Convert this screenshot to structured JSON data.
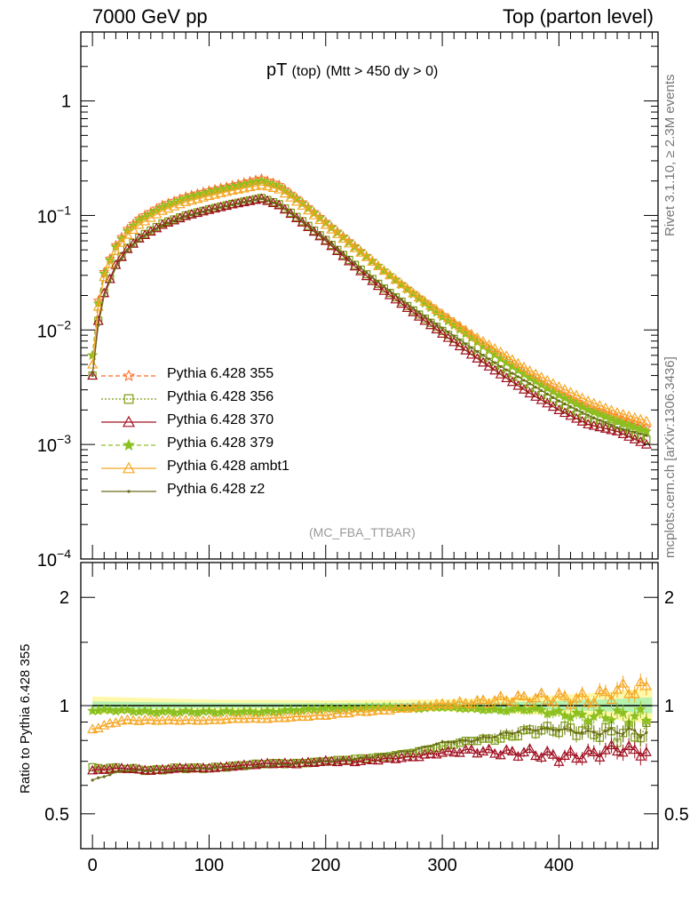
{
  "header": {
    "left": "7000 GeV pp",
    "right": "Top (parton level)"
  },
  "side_labels": {
    "rivet": "Rivet 3.1.10, ≥ 2.3M events",
    "mcplots": "mcplots.cern.ch [arXiv:1306.3436]"
  },
  "plot_title": {
    "main": "pT",
    "sub1": "(top)",
    "sub2": "(Mtt > 450 dy > 0)"
  },
  "watermark": "(MC_FBA_TTBAR)",
  "ratio_ylabel": "Ratio to Pythia 6.428 355",
  "legend": [
    {
      "label": "Pythia 6.428 355",
      "color": "#ff6a20",
      "marker": "star-open",
      "dash": "5,3"
    },
    {
      "label": "Pythia 6.428 356",
      "color": "#7a9a10",
      "marker": "square-open",
      "dash": "2,2"
    },
    {
      "label": "Pythia 6.428 370",
      "color": "#a01020",
      "marker": "triangle-open",
      "dash": ""
    },
    {
      "label": "Pythia 6.428 379",
      "color": "#8cc020",
      "marker": "star-filled",
      "dash": "5,3"
    },
    {
      "label": "Pythia 6.428 ambt1",
      "color": "#f5a623",
      "marker": "triangle-open",
      "dash": ""
    },
    {
      "label": "Pythia 6.428 z2",
      "color": "#6b6b1a",
      "marker": "dot",
      "dash": ""
    }
  ],
  "chart_data": [
    {
      "type": "line",
      "panel": "main",
      "yscale": "log",
      "xlim": [
        -10,
        485
      ],
      "ylim": [
        0.0001,
        4
      ],
      "ytick_labels": [
        "1",
        "10^-1",
        "10^-2",
        "10^-3",
        "10^-4"
      ],
      "x": [
        0,
        5,
        10,
        20,
        30,
        40,
        60,
        80,
        100,
        120,
        145,
        160,
        180,
        200,
        225,
        250,
        275,
        300,
        325,
        350,
        375,
        400,
        425,
        450,
        475
      ],
      "series": [
        {
          "name": "Pythia 6.428 355",
          "values": [
            0.006,
            0.018,
            0.032,
            0.055,
            0.076,
            0.094,
            0.123,
            0.146,
            0.165,
            0.183,
            0.21,
            0.185,
            0.13,
            0.088,
            0.054,
            0.033,
            0.021,
            0.0135,
            0.0088,
            0.0058,
            0.0039,
            0.0028,
            0.0021,
            0.0017,
            0.0014
          ]
        },
        {
          "name": "Pythia 6.428 356",
          "values": [
            0.004,
            0.012,
            0.021,
            0.037,
            0.052,
            0.064,
            0.085,
            0.1,
            0.113,
            0.126,
            0.142,
            0.125,
            0.089,
            0.061,
            0.037,
            0.023,
            0.0148,
            0.0098,
            0.0066,
            0.0045,
            0.0031,
            0.0022,
            0.0016,
            0.0014,
            0.0011
          ]
        },
        {
          "name": "Pythia 6.428 370",
          "values": [
            0.004,
            0.012,
            0.021,
            0.037,
            0.051,
            0.063,
            0.083,
            0.099,
            0.112,
            0.125,
            0.14,
            0.123,
            0.087,
            0.06,
            0.036,
            0.022,
            0.0143,
            0.0093,
            0.0061,
            0.0041,
            0.0028,
            0.002,
            0.0015,
            0.0013,
            0.001
          ]
        },
        {
          "name": "Pythia 6.428 379",
          "values": [
            0.006,
            0.017,
            0.031,
            0.053,
            0.073,
            0.09,
            0.118,
            0.141,
            0.159,
            0.176,
            0.2,
            0.178,
            0.127,
            0.086,
            0.053,
            0.033,
            0.0205,
            0.013,
            0.0085,
            0.0056,
            0.0038,
            0.0027,
            0.002,
            0.0016,
            0.0013
          ]
        },
        {
          "name": "Pythia 6.428 ambt1",
          "values": [
            0.005,
            0.016,
            0.029,
            0.049,
            0.068,
            0.083,
            0.11,
            0.131,
            0.148,
            0.165,
            0.185,
            0.169,
            0.122,
            0.083,
            0.052,
            0.033,
            0.021,
            0.0138,
            0.0092,
            0.0064,
            0.0044,
            0.0032,
            0.0024,
            0.0019,
            0.0016
          ]
        },
        {
          "name": "Pythia 6.428 z2",
          "values": [
            0.004,
            0.011,
            0.02,
            0.035,
            0.05,
            0.062,
            0.082,
            0.098,
            0.111,
            0.124,
            0.14,
            0.124,
            0.089,
            0.062,
            0.038,
            0.024,
            0.0155,
            0.0104,
            0.007,
            0.0048,
            0.0034,
            0.0024,
            0.0018,
            0.0014,
            0.0012
          ]
        }
      ]
    },
    {
      "type": "line",
      "panel": "ratio",
      "yscale": "log",
      "xlim": [
        -10,
        485
      ],
      "ylim": [
        0.4,
        2.5
      ],
      "ylabel": "Ratio to Pythia 6.428 355",
      "ytick_labels": [
        "0.5",
        "1",
        "2"
      ],
      "xtick_labels": [
        "0",
        "100",
        "200",
        "300",
        "400"
      ],
      "x": [
        0,
        25,
        50,
        75,
        100,
        125,
        150,
        175,
        200,
        225,
        250,
        275,
        300,
        325,
        350,
        375,
        400,
        425,
        450,
        475
      ],
      "series": [
        {
          "name": "Pythia 6.428 355",
          "values": [
            1,
            1,
            1,
            1,
            1,
            1,
            1,
            1,
            1,
            1,
            1,
            1,
            1,
            1,
            1,
            1,
            1,
            1,
            1,
            1
          ]
        },
        {
          "name": "Pythia 6.428 356",
          "values": [
            0.67,
            0.67,
            0.66,
            0.67,
            0.67,
            0.68,
            0.69,
            0.69,
            0.7,
            0.71,
            0.72,
            0.74,
            0.77,
            0.8,
            0.81,
            0.85,
            0.86,
            0.85,
            0.83,
            0.85
          ]
        },
        {
          "name": "Pythia 6.428 370",
          "values": [
            0.66,
            0.67,
            0.66,
            0.67,
            0.67,
            0.68,
            0.69,
            0.69,
            0.7,
            0.7,
            0.71,
            0.72,
            0.74,
            0.75,
            0.74,
            0.74,
            0.72,
            0.73,
            0.76,
            0.74
          ]
        },
        {
          "name": "Pythia 6.428 379",
          "values": [
            0.97,
            0.97,
            0.96,
            0.96,
            0.96,
            0.96,
            0.96,
            0.97,
            0.98,
            0.98,
            0.99,
            0.98,
            0.99,
            0.98,
            0.97,
            0.98,
            0.95,
            0.93,
            0.94,
            0.93
          ]
        },
        {
          "name": "Pythia 6.428 ambt1",
          "values": [
            0.86,
            0.91,
            0.91,
            0.91,
            0.91,
            0.92,
            0.92,
            0.93,
            0.94,
            0.96,
            0.97,
            0.99,
            1.01,
            1.02,
            1.04,
            1.05,
            1.05,
            1.04,
            1.1,
            1.12
          ]
        },
        {
          "name": "Pythia 6.428 z2",
          "values": [
            0.62,
            0.66,
            0.66,
            0.66,
            0.67,
            0.67,
            0.68,
            0.69,
            0.7,
            0.71,
            0.73,
            0.75,
            0.79,
            0.8,
            0.83,
            0.86,
            0.86,
            0.84,
            0.85,
            0.84
          ]
        }
      ]
    }
  ]
}
